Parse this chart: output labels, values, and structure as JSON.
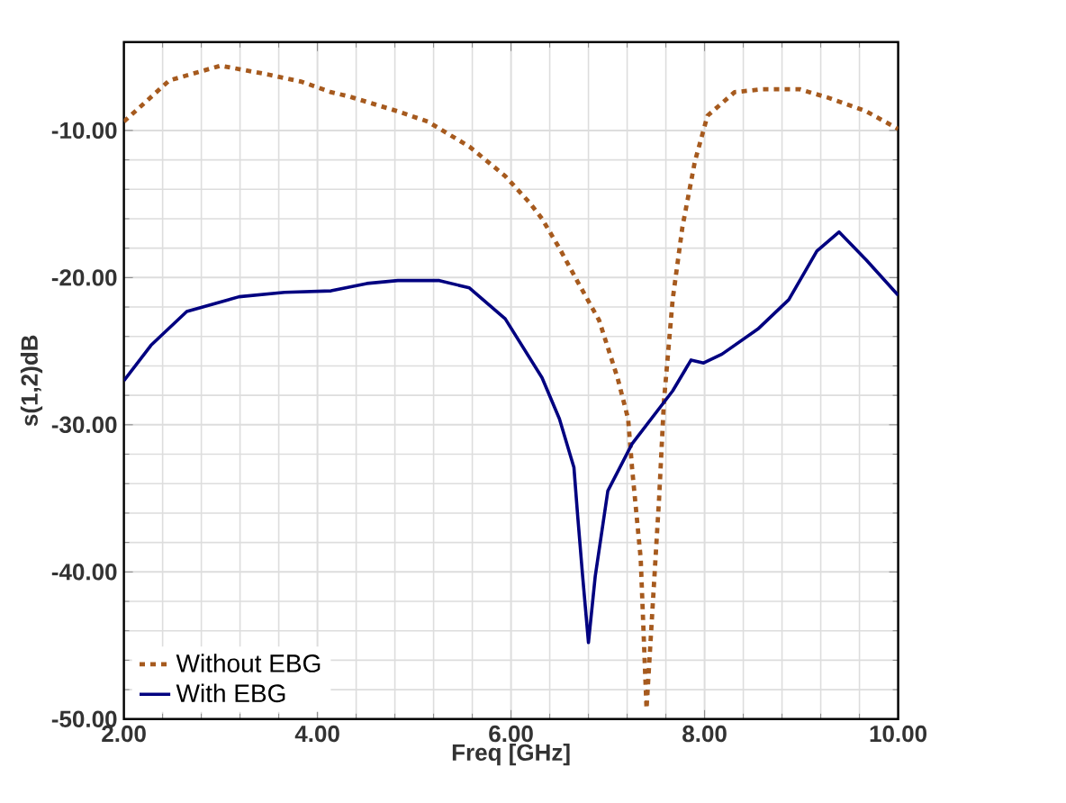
{
  "chart_data": {
    "type": "line",
    "xlabel": "Freq [GHz]",
    "ylabel": "s(1,2)dB",
    "xlim": [
      2,
      10
    ],
    "ylim": [
      -50,
      -4
    ],
    "xticks": [
      {
        "value": 2,
        "label": "2.00"
      },
      {
        "value": 4,
        "label": "4.00"
      },
      {
        "value": 6,
        "label": "6.00"
      },
      {
        "value": 8,
        "label": "8.00"
      },
      {
        "value": 10,
        "label": "10.00"
      }
    ],
    "yticks": [
      {
        "value": -50,
        "label": "-50.00"
      },
      {
        "value": -40,
        "label": "-40.00"
      },
      {
        "value": -30,
        "label": "-30.00"
      },
      {
        "value": -20,
        "label": "-20.00"
      },
      {
        "value": -10,
        "label": "-10.00"
      }
    ],
    "grid": true,
    "legend": "bottom left",
    "series": [
      {
        "name": "Without EBG",
        "color": "#a65a1e",
        "line_style": "dotted",
        "x": [
          2.0,
          2.47,
          3.0,
          3.49,
          3.84,
          4.14,
          4.33,
          4.83,
          5.14,
          5.57,
          5.94,
          6.19,
          6.32,
          6.5,
          6.69,
          6.91,
          7.1,
          7.21,
          7.25,
          7.34,
          7.4,
          7.53,
          7.58,
          7.67,
          7.77,
          7.9,
          8.03,
          8.31,
          8.6,
          8.98,
          9.29,
          9.67,
          10.0
        ],
        "values": [
          -9.4,
          -6.6,
          -5.6,
          -6.2,
          -6.7,
          -7.4,
          -7.7,
          -8.7,
          -9.4,
          -11.1,
          -13.1,
          -14.9,
          -16.0,
          -18.0,
          -20.3,
          -22.9,
          -26.8,
          -29.6,
          -32.9,
          -39.1,
          -49.3,
          -35.0,
          -28.4,
          -21.5,
          -16.6,
          -12.1,
          -9.0,
          -7.4,
          -7.2,
          -7.2,
          -7.8,
          -8.7,
          -9.9
        ]
      },
      {
        "name": "With EBG",
        "color": "#000080",
        "line_style": "solid",
        "x": [
          2.0,
          2.28,
          2.65,
          3.19,
          3.66,
          4.14,
          4.51,
          4.83,
          5.26,
          5.57,
          5.94,
          6.32,
          6.5,
          6.65,
          6.69,
          6.74,
          6.8,
          6.87,
          7.0,
          7.25,
          7.67,
          7.86,
          7.99,
          8.18,
          8.55,
          8.87,
          9.16,
          9.39,
          9.67,
          10.0
        ],
        "values": [
          -27.0,
          -24.6,
          -22.3,
          -21.3,
          -21.0,
          -20.9,
          -20.4,
          -20.2,
          -20.2,
          -20.7,
          -22.8,
          -26.8,
          -29.6,
          -32.9,
          -36.3,
          -40.3,
          -44.8,
          -40.3,
          -34.5,
          -31.3,
          -27.7,
          -25.6,
          -25.8,
          -25.2,
          -23.5,
          -21.5,
          -18.2,
          -16.9,
          -18.8,
          -21.2
        ]
      }
    ]
  }
}
